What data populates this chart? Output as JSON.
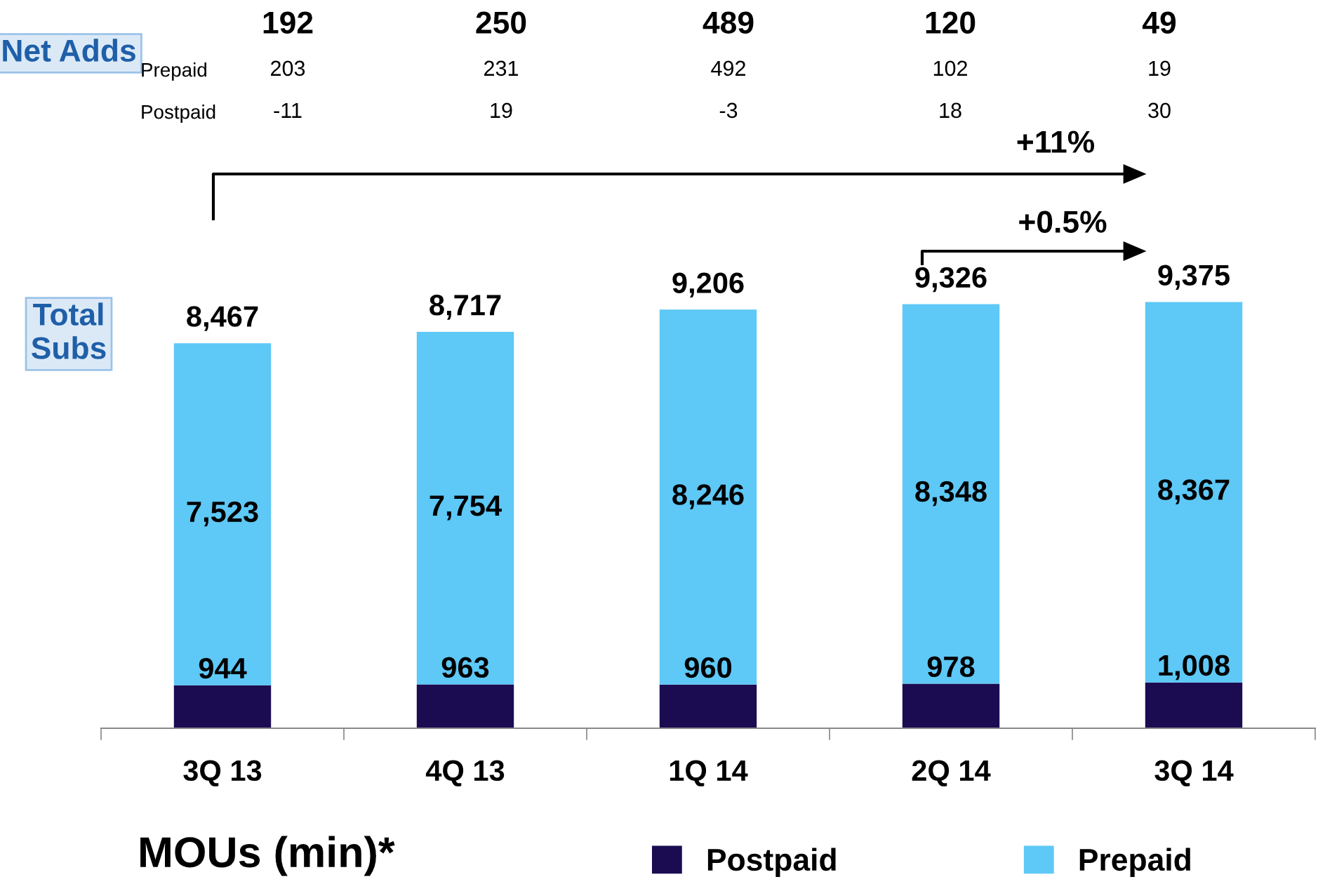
{
  "chart_data": {
    "type": "bar",
    "stacked": true,
    "categories": [
      "3Q 13",
      "4Q 13",
      "1Q 14",
      "2Q 14",
      "3Q 14"
    ],
    "series": [
      {
        "name": "Postpaid",
        "color": "#1b0c52",
        "values": [
          944,
          963,
          960,
          978,
          1008
        ],
        "value_labels": [
          "944",
          "963",
          "960",
          "978",
          "1,008"
        ]
      },
      {
        "name": "Prepaid",
        "color": "#5ec8f6",
        "values": [
          7523,
          7754,
          8246,
          8348,
          8367
        ],
        "value_labels": [
          "7,523",
          "7,754",
          "8,246",
          "8,348",
          "8,367"
        ]
      }
    ],
    "totals": [
      "8,467",
      "8,717",
      "9,206",
      "9,326",
      "9,375"
    ],
    "legend": "bottom",
    "grid": false,
    "annotations": [
      "Net Adds",
      "192",
      "250",
      "489",
      "120",
      "49",
      "Prepaid",
      "203",
      "231",
      "492",
      "102",
      "19",
      "Postpaid",
      "-11",
      "19",
      "-3",
      "18",
      "30",
      "+11%",
      "+0.5%",
      "Total Subs",
      "MOUs (min)*"
    ]
  }
}
